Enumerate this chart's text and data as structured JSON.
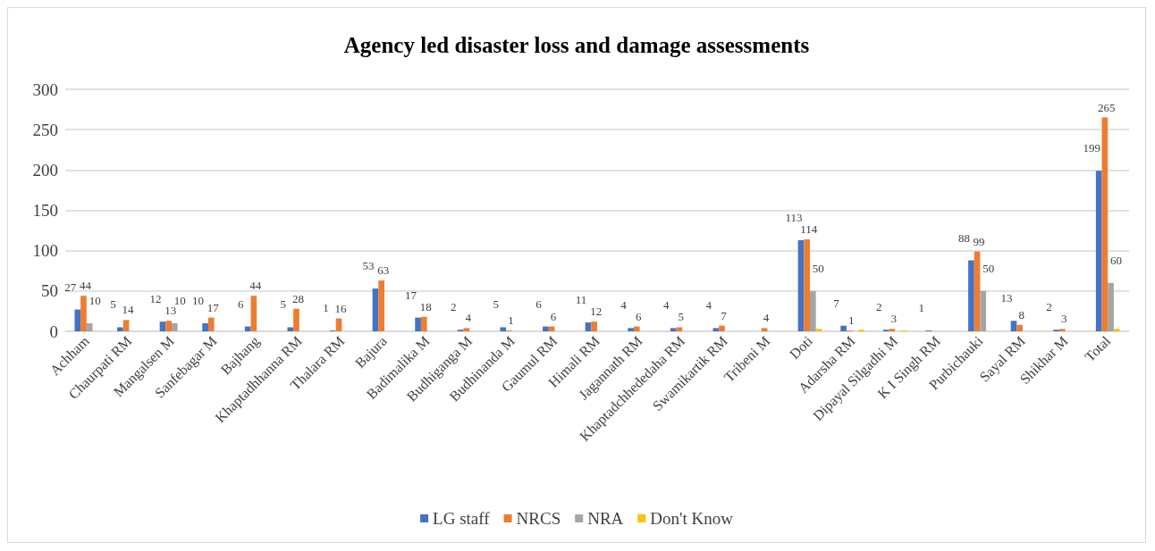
{
  "chart_data": {
    "type": "bar",
    "title": "Agency led disaster loss and damage assessments",
    "categories": [
      "Achham",
      "Chaurpati RM",
      "Mangalsen M",
      "Sanfebagar M",
      "Bajhang",
      "Khaptadhhanna RM",
      "Thalara RM",
      "Bajura",
      "Badimalika M",
      "Budhiganga M",
      "Budhinanda M",
      "Gaumul RM",
      "Himali RM",
      "Jagannath RM",
      "Khaptadchhededaha RM",
      "Swamikartik RM",
      "Tribeni M",
      "Doti",
      "Adarsha RM",
      "Dipayal Silgadhi M",
      "K I Singh RM",
      "Purbichauki",
      "Sayal RM",
      "Shikhar M",
      "Total"
    ],
    "series": [
      {
        "name": "LG staff",
        "color": "#4472c4",
        "values": [
          27,
          5,
          12,
          10,
          6,
          5,
          1,
          53,
          17,
          2,
          5,
          6,
          11,
          4,
          4,
          4,
          0,
          113,
          7,
          2,
          1,
          88,
          13,
          2,
          199
        ],
        "value_labels": [
          "27",
          "5",
          "12",
          "10",
          "6",
          "5",
          "1",
          "53",
          "17",
          "2",
          "5",
          "6",
          "11",
          "4",
          "4",
          "4",
          null,
          "113",
          "7",
          "2",
          "1",
          "88",
          "13",
          "2",
          "199"
        ]
      },
      {
        "name": "NRCS",
        "color": "#ed7d31",
        "values": [
          44,
          14,
          13,
          17,
          44,
          28,
          16,
          63,
          18,
          4,
          1,
          6,
          12,
          6,
          5,
          7,
          4,
          114,
          1,
          3,
          0,
          99,
          8,
          3,
          265
        ],
        "value_labels": [
          "44",
          "14",
          "13",
          "17",
          "44",
          "28",
          "16",
          "63",
          "18",
          "4",
          "1",
          "6",
          "12",
          "6",
          "5",
          "7",
          "4",
          "114",
          "1",
          "3",
          null,
          "99",
          "8",
          "3",
          "265"
        ]
      },
      {
        "name": "NRA",
        "color": "#a5a5a5",
        "values": [
          10,
          0,
          10,
          0,
          0,
          0,
          0,
          0,
          0,
          0,
          0,
          0,
          0,
          0,
          0,
          0,
          0,
          50,
          0,
          0,
          0,
          50,
          0,
          0,
          60
        ],
        "value_labels": [
          "10",
          null,
          "10",
          null,
          null,
          null,
          null,
          null,
          null,
          null,
          null,
          null,
          null,
          null,
          null,
          null,
          null,
          "50",
          null,
          null,
          null,
          "50",
          null,
          null,
          "60"
        ]
      },
      {
        "name": "Don't Know",
        "color": "#ffc000",
        "values": [
          0,
          0,
          0,
          0,
          0,
          0,
          0,
          0,
          0,
          0,
          0,
          0,
          0,
          0,
          0,
          0,
          0,
          3,
          2,
          1,
          0,
          0,
          0,
          0,
          3
        ]
      }
    ],
    "ylim": [
      0,
      300
    ],
    "yticks": [
      0,
      50,
      100,
      150,
      200,
      250,
      300
    ],
    "grid": "y",
    "legend": "bottom"
  }
}
